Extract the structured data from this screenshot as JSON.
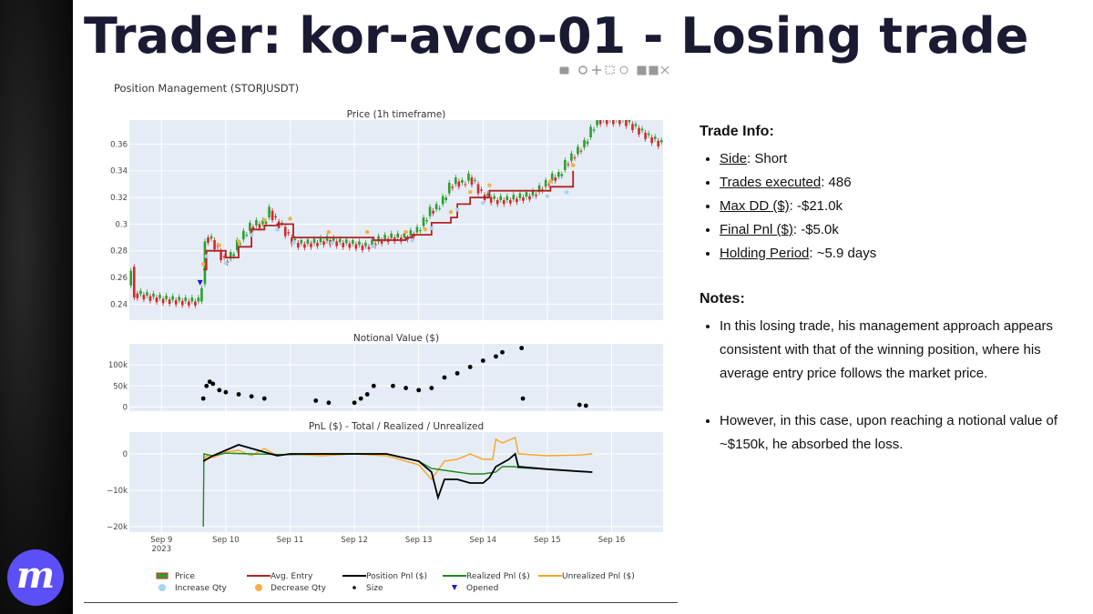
{
  "slide": {
    "title": "Trader: kor-avco-01 - Losing trade",
    "logo_letter": "m"
  },
  "trade_info": {
    "heading": "Trade Info:",
    "items": [
      {
        "label": "Side",
        "value": ": Short"
      },
      {
        "label": "Trades executed",
        "value": ": 486"
      },
      {
        "label": "Max DD ($)",
        "value": ": -$21.0k"
      },
      {
        "label": "Final Pnl ($)",
        "value": ": -$5.0k"
      },
      {
        "label": "Holding Period",
        "value": ": ~5.9 days"
      }
    ]
  },
  "notes": {
    "heading": "Notes:",
    "items": [
      "In this losing trade, his management approach appears consistent with that of the winning position, where his average entry price follows the market price.",
      "However, in this case, upon reaching a notional value of ~$150k, he absorbed the loss."
    ]
  },
  "chart_data": {
    "type": "line",
    "title": "Position Management (STORJUSDT)",
    "x_ticks": [
      "Sep 9",
      "Sep 10",
      "Sep 11",
      "Sep 12",
      "Sep 13",
      "Sep 14",
      "Sep 15",
      "Sep 16"
    ],
    "x_year": "2023",
    "x_range": [
      8.5,
      16.8
    ],
    "colors": {
      "up": "#2ca02c",
      "down": "#d62728",
      "avg_entry": "#b22222",
      "position_pnl": "#000000",
      "realized": "#1f8a1f",
      "unrealized": "#f5a623",
      "increase": "#a6d4f2",
      "decrease": "#f5b041",
      "opened": "#1a1acc",
      "plot_bg": "#e5ecf6"
    },
    "panels": [
      {
        "name": "Price (1h timeframe)",
        "y_ticks": [
          "0.36",
          "0.34",
          "0.32",
          "0.3",
          "0.28",
          "0.26",
          "0.24"
        ],
        "y_range": [
          0.228,
          0.378
        ],
        "price": [
          [
            8.5,
            0.254
          ],
          [
            8.55,
            0.268
          ],
          [
            8.6,
            0.248
          ],
          [
            8.8,
            0.246
          ],
          [
            9.0,
            0.244
          ],
          [
            9.2,
            0.243
          ],
          [
            9.4,
            0.242
          ],
          [
            9.6,
            0.242
          ],
          [
            9.65,
            0.255
          ],
          [
            9.7,
            0.29
          ],
          [
            9.8,
            0.288
          ],
          [
            9.9,
            0.28
          ],
          [
            10.0,
            0.272
          ],
          [
            10.1,
            0.276
          ],
          [
            10.2,
            0.285
          ],
          [
            10.3,
            0.292
          ],
          [
            10.4,
            0.298
          ],
          [
            10.5,
            0.3
          ],
          [
            10.6,
            0.3
          ],
          [
            10.7,
            0.31
          ],
          [
            10.8,
            0.302
          ],
          [
            10.9,
            0.298
          ],
          [
            11.0,
            0.29
          ],
          [
            11.1,
            0.286
          ],
          [
            11.2,
            0.285
          ],
          [
            11.4,
            0.286
          ],
          [
            11.6,
            0.288
          ],
          [
            11.8,
            0.286
          ],
          [
            12.0,
            0.285
          ],
          [
            12.2,
            0.283
          ],
          [
            12.4,
            0.288
          ],
          [
            12.6,
            0.29
          ],
          [
            12.8,
            0.29
          ],
          [
            13.0,
            0.295
          ],
          [
            13.1,
            0.302
          ],
          [
            13.2,
            0.31
          ],
          [
            13.3,
            0.312
          ],
          [
            13.4,
            0.318
          ],
          [
            13.5,
            0.328
          ],
          [
            13.6,
            0.332
          ],
          [
            13.7,
            0.33
          ],
          [
            13.8,
            0.335
          ],
          [
            13.9,
            0.33
          ],
          [
            14.0,
            0.322
          ],
          [
            14.1,
            0.32
          ],
          [
            14.2,
            0.318
          ],
          [
            14.4,
            0.318
          ],
          [
            14.6,
            0.32
          ],
          [
            14.8,
            0.322
          ],
          [
            15.0,
            0.33
          ],
          [
            15.1,
            0.335
          ],
          [
            15.2,
            0.336
          ],
          [
            15.3,
            0.345
          ],
          [
            15.4,
            0.35
          ],
          [
            15.5,
            0.355
          ],
          [
            15.6,
            0.36
          ],
          [
            15.7,
            0.37
          ],
          [
            15.8,
            0.378
          ],
          [
            16.2,
            0.378
          ],
          [
            16.4,
            0.372
          ],
          [
            16.6,
            0.365
          ],
          [
            16.8,
            0.36
          ]
        ],
        "avg_entry": [
          [
            9.65,
            0.266
          ],
          [
            9.7,
            0.28
          ],
          [
            9.9,
            0.28
          ],
          [
            10.0,
            0.275
          ],
          [
            10.2,
            0.283
          ],
          [
            10.4,
            0.296
          ],
          [
            10.6,
            0.299
          ],
          [
            10.8,
            0.3
          ],
          [
            11.0,
            0.3
          ],
          [
            11.05,
            0.29
          ],
          [
            11.6,
            0.29
          ],
          [
            11.65,
            0.29
          ],
          [
            12.2,
            0.29
          ],
          [
            12.3,
            0.288
          ],
          [
            12.8,
            0.29
          ],
          [
            12.9,
            0.292
          ],
          [
            13.1,
            0.292
          ],
          [
            13.2,
            0.301
          ],
          [
            13.5,
            0.305
          ],
          [
            13.6,
            0.315
          ],
          [
            13.8,
            0.32
          ],
          [
            14.0,
            0.32
          ],
          [
            14.1,
            0.325
          ],
          [
            15.0,
            0.325
          ],
          [
            15.05,
            0.328
          ],
          [
            15.3,
            0.328
          ],
          [
            15.4,
            0.34
          ]
        ],
        "opened": [
          [
            9.6,
            0.256
          ]
        ]
      },
      {
        "name": "Notional Value ($)",
        "y_ticks": [
          "100k",
          "50k",
          "0"
        ],
        "y_range": [
          -10000,
          150000
        ],
        "size": [
          [
            9.65,
            20000
          ],
          [
            9.7,
            50000
          ],
          [
            9.75,
            60000
          ],
          [
            9.8,
            55000
          ],
          [
            9.9,
            40000
          ],
          [
            10.0,
            35000
          ],
          [
            10.2,
            30000
          ],
          [
            10.4,
            25000
          ],
          [
            10.6,
            20000
          ],
          [
            11.4,
            15000
          ],
          [
            11.6,
            10000
          ],
          [
            12.0,
            10000
          ],
          [
            12.1,
            20000
          ],
          [
            12.2,
            30000
          ],
          [
            12.3,
            50000
          ],
          [
            12.6,
            50000
          ],
          [
            12.8,
            45000
          ],
          [
            13.0,
            40000
          ],
          [
            13.2,
            45000
          ],
          [
            13.4,
            70000
          ],
          [
            13.6,
            80000
          ],
          [
            13.8,
            95000
          ],
          [
            14.0,
            110000
          ],
          [
            14.2,
            120000
          ],
          [
            14.3,
            130000
          ],
          [
            14.6,
            140000
          ],
          [
            14.62,
            20000
          ],
          [
            15.5,
            5000
          ],
          [
            15.6,
            3000
          ]
        ]
      },
      {
        "name": "PnL ($) - Total / Realized / Unrealized",
        "y_ticks": [
          "0",
          "−10k",
          "−20k"
        ],
        "y_range": [
          -21500,
          6000
        ],
        "unrealized": [
          [
            9.65,
            -3000
          ],
          [
            9.7,
            -500
          ],
          [
            9.8,
            -1000
          ],
          [
            10.0,
            500
          ],
          [
            10.2,
            1000
          ],
          [
            10.4,
            -500
          ],
          [
            10.6,
            1500
          ],
          [
            10.8,
            -500
          ],
          [
            11.0,
            0
          ],
          [
            11.5,
            -500
          ],
          [
            12.0,
            0
          ],
          [
            12.5,
            -500
          ],
          [
            13.0,
            -3000
          ],
          [
            13.2,
            -7000
          ],
          [
            13.4,
            -2000
          ],
          [
            13.6,
            -1500
          ],
          [
            13.8,
            0
          ],
          [
            14.0,
            -1500
          ],
          [
            14.15,
            -1500
          ],
          [
            14.2,
            4000
          ],
          [
            14.3,
            3000
          ],
          [
            14.5,
            4500
          ],
          [
            14.55,
            0
          ],
          [
            15.0,
            -500
          ],
          [
            15.5,
            -300
          ],
          [
            15.7,
            0
          ]
        ],
        "realized": [
          [
            9.65,
            -20000
          ],
          [
            9.66,
            0
          ],
          [
            9.8,
            -500
          ],
          [
            10.0,
            200
          ],
          [
            10.4,
            0
          ],
          [
            11.0,
            -200
          ],
          [
            11.5,
            0
          ],
          [
            12.0,
            0
          ],
          [
            12.5,
            0
          ],
          [
            13.0,
            -2000
          ],
          [
            13.2,
            -4000
          ],
          [
            13.4,
            -4500
          ],
          [
            13.6,
            -5000
          ],
          [
            13.8,
            -5500
          ],
          [
            14.0,
            -5500
          ],
          [
            14.2,
            -5000
          ],
          [
            14.3,
            -3500
          ],
          [
            14.5,
            -3500
          ],
          [
            14.55,
            -3800
          ],
          [
            15.0,
            -4200
          ],
          [
            15.5,
            -4800
          ],
          [
            15.7,
            -5000
          ]
        ],
        "position_pnl": [
          [
            9.65,
            -2000
          ],
          [
            9.7,
            -1500
          ],
          [
            9.8,
            -500
          ],
          [
            10.0,
            1000
          ],
          [
            10.2,
            2500
          ],
          [
            10.4,
            1500
          ],
          [
            10.6,
            500
          ],
          [
            10.8,
            -500
          ],
          [
            11.0,
            0
          ],
          [
            11.5,
            0
          ],
          [
            12.0,
            0
          ],
          [
            12.5,
            0
          ],
          [
            13.0,
            -2000
          ],
          [
            13.2,
            -5000
          ],
          [
            13.3,
            -12000
          ],
          [
            13.4,
            -7000
          ],
          [
            13.6,
            -7000
          ],
          [
            13.8,
            -8000
          ],
          [
            14.0,
            -8000
          ],
          [
            14.1,
            -6500
          ],
          [
            14.2,
            -3500
          ],
          [
            14.4,
            -1500
          ],
          [
            14.5,
            0
          ],
          [
            14.55,
            -3500
          ],
          [
            15.0,
            -4200
          ],
          [
            15.5,
            -4800
          ],
          [
            15.7,
            -5000
          ]
        ]
      }
    ],
    "legend": [
      {
        "name": "Price"
      },
      {
        "name": "Avg. Entry"
      },
      {
        "name": "Position Pnl ($)"
      },
      {
        "name": "Realized Pnl ($)"
      },
      {
        "name": "Unrealized Pnl ($)"
      },
      {
        "name": "Increase Qty"
      },
      {
        "name": "Decrease Qty"
      },
      {
        "name": "Size"
      },
      {
        "name": "Opened"
      }
    ]
  }
}
